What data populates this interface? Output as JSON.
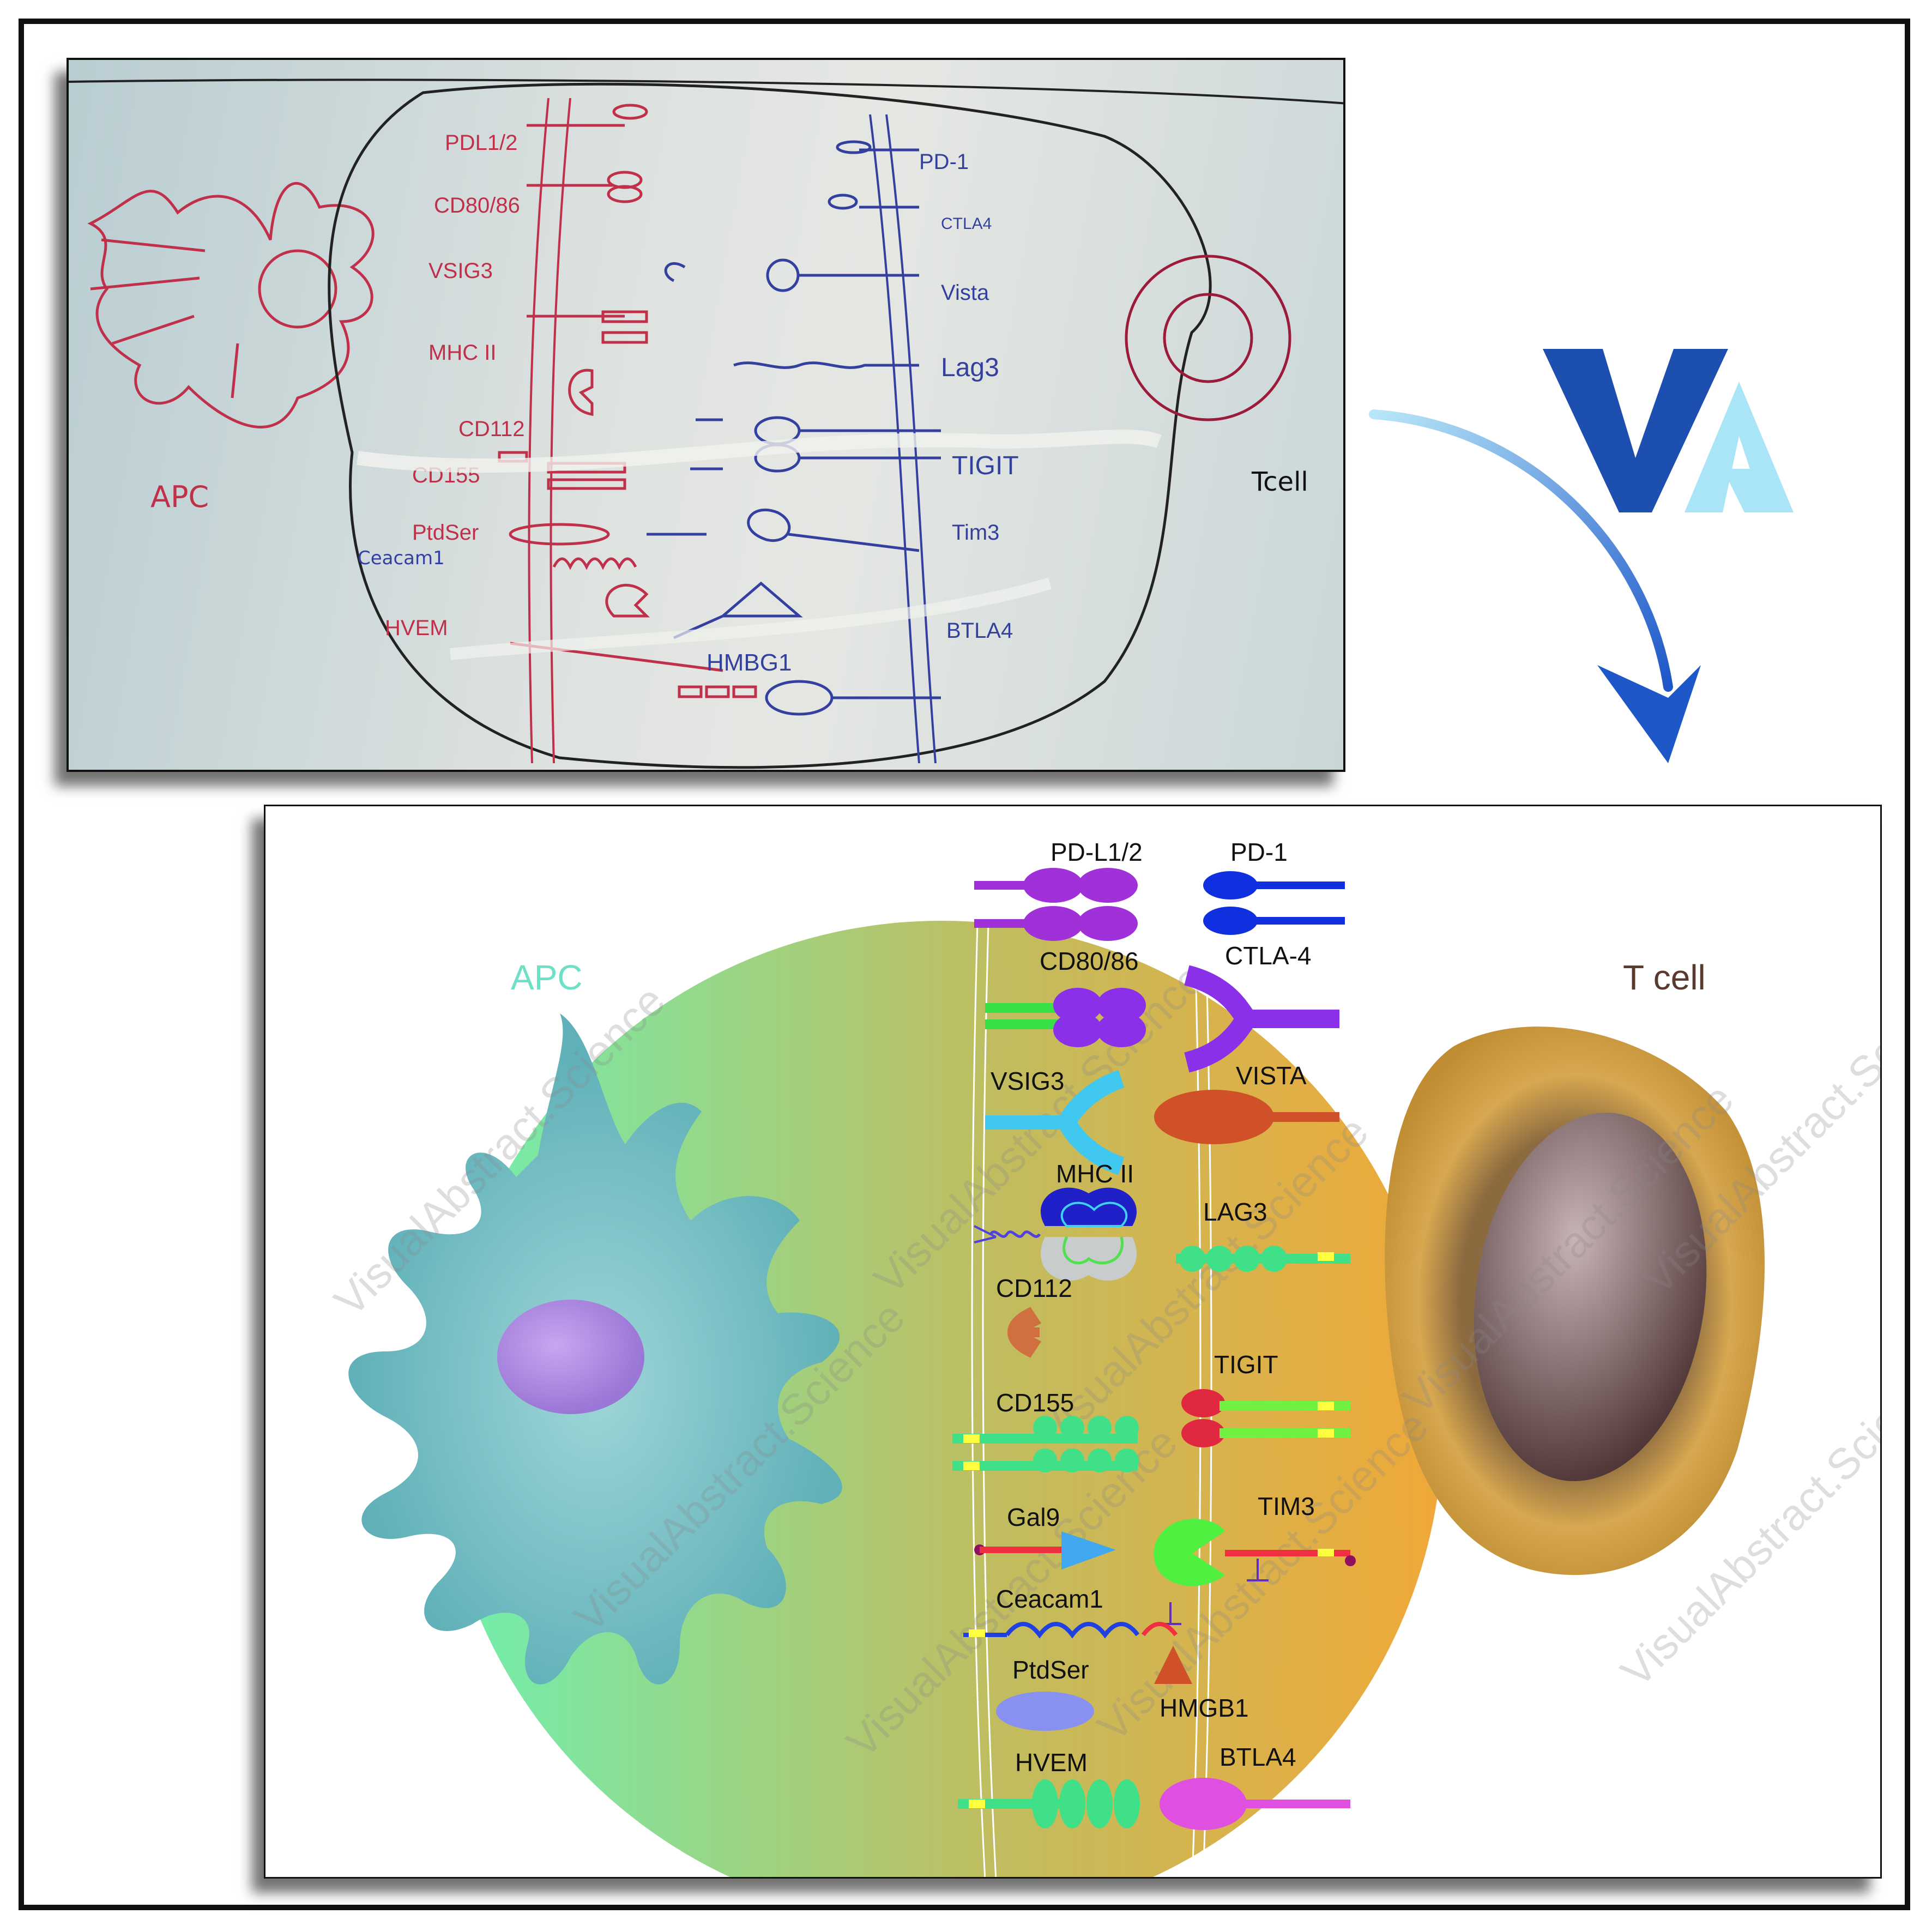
{
  "sketch": {
    "apc_label": "APC",
    "tcell_label": "Tcell",
    "apc_molecules": [
      "PDL1/2",
      "CD80/86",
      "VSIG3",
      "MHC II",
      "CD112",
      "CD155",
      "PtdSer",
      "Ceacam1",
      "HVEM"
    ],
    "tcell_molecules": [
      "PD-1",
      "CTLA4",
      "Vista",
      "Lag3",
      "TIGIT",
      "Tim3",
      "BTLA4"
    ],
    "middle_label": "HMBG1"
  },
  "logo": {
    "text": "VA",
    "colors": {
      "v": "#1d4fb0",
      "a": "#a9e4f7"
    }
  },
  "diagram": {
    "apc_label": "APC",
    "tcell_label": "T cell",
    "left_labels": {
      "pdl12": "PD-L1/2",
      "cd8086": "CD80/86",
      "vsig3": "VSIG3",
      "mhc2": "MHC II",
      "cd112": "CD112",
      "cd155": "CD155",
      "gal9": "Gal9",
      "ceacam1": "Ceacam1",
      "ptdser": "PtdSer",
      "hvem": "HVEM"
    },
    "right_labels": {
      "pd1": "PD-1",
      "ctla4": "CTLA-4",
      "vista": "VISTA",
      "lag3": "LAG3",
      "tigit": "TIGIT",
      "tim3": "TIM3",
      "hmgb1": "HMGB1",
      "btla4": "BTLA4"
    },
    "watermark": "VisualAbstract.Science",
    "colors": {
      "apc": "#5fb0b8",
      "apc_label": "#6fe0c8",
      "tcell_label": "#5a3a2e",
      "synapse_left": "#6ff0b0",
      "synapse_right": "#f0a838",
      "tcell_outer": "#c9973a",
      "tcell_nucleus": "#6e5550"
    }
  }
}
